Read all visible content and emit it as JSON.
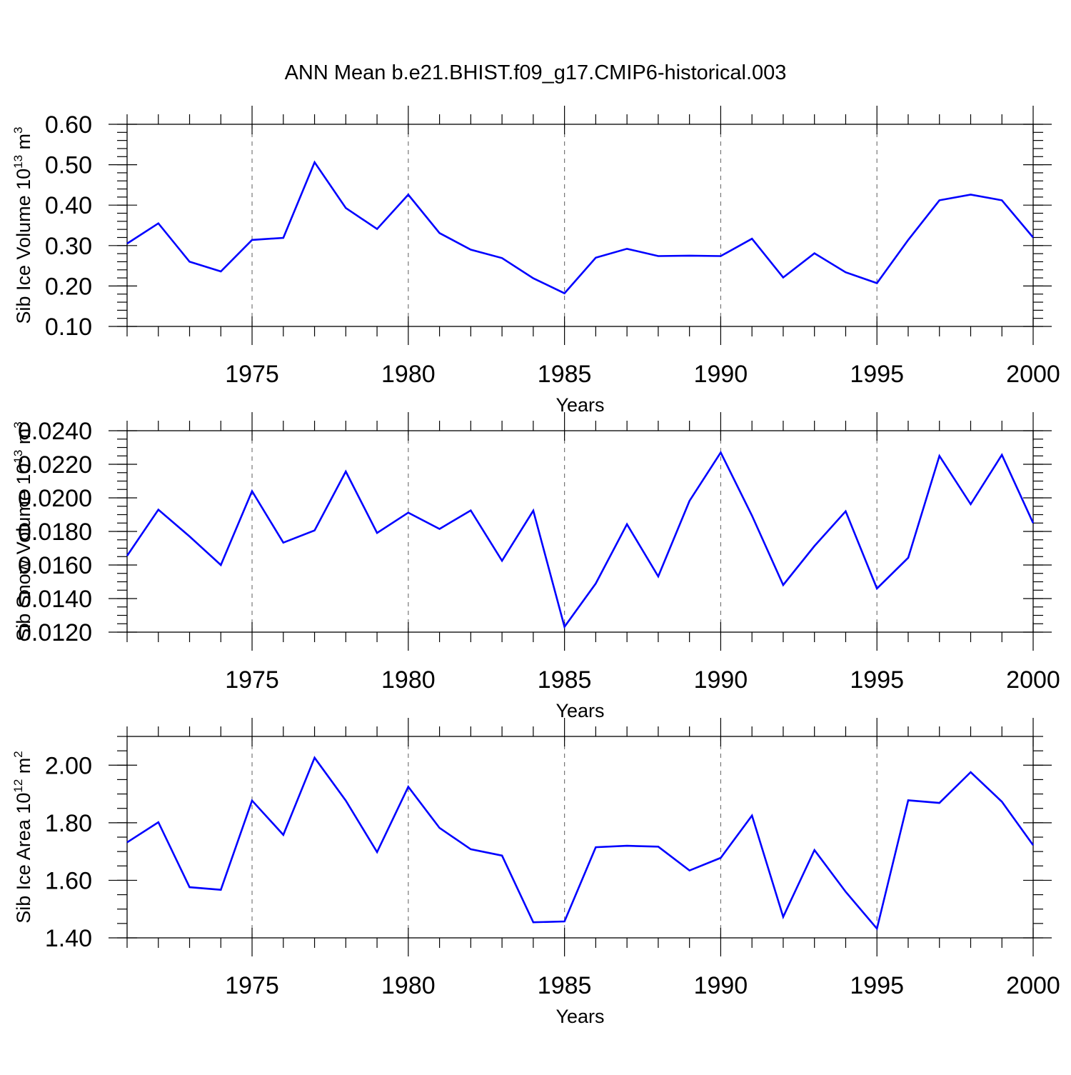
{
  "title": "ANN Mean b.e21.BHIST.f09_g17.CMIP6-historical.003",
  "colors": {
    "series": "#0000ff",
    "grid": "#777777",
    "frame": "#000000"
  },
  "chart_data": [
    {
      "type": "line",
      "xlabel": "Years",
      "ylabel_base": "Sib Ice Volume 10",
      "ylabel_exp": "13",
      "ylabel_unit": " m",
      "ylabel_unit_exp": "3",
      "xlim": [
        1971,
        2000
      ],
      "ylim": [
        0.1,
        0.6
      ],
      "yticks": [
        "0.10",
        "0.20",
        "0.30",
        "0.40",
        "0.50",
        "0.60"
      ],
      "yminor_step": 0.02,
      "xticks": [
        "1975",
        "1980",
        "1985",
        "1990",
        "1995",
        "2000"
      ],
      "xgrid": [
        1975,
        1980,
        1985,
        1990,
        1995
      ],
      "x": [
        1971,
        1972,
        1973,
        1974,
        1975,
        1976,
        1977,
        1978,
        1979,
        1980,
        1981,
        1982,
        1983,
        1984,
        1985,
        1986,
        1987,
        1988,
        1989,
        1990,
        1991,
        1992,
        1993,
        1994,
        1995,
        1996,
        1997,
        1998,
        1999,
        2000
      ],
      "values": [
        0.305,
        0.355,
        0.26,
        0.236,
        0.314,
        0.319,
        0.506,
        0.393,
        0.341,
        0.426,
        0.331,
        0.29,
        0.269,
        0.219,
        0.182,
        0.27,
        0.292,
        0.274,
        0.275,
        0.274,
        0.317,
        0.221,
        0.281,
        0.234,
        0.207,
        0.314,
        0.412,
        0.426,
        0.412,
        0.32
      ]
    },
    {
      "type": "line",
      "xlabel": "Years",
      "ylabel_base": "Sib Snow Volume 10",
      "ylabel_exp": "13",
      "ylabel_unit": " m",
      "ylabel_unit_exp": "3",
      "xlim": [
        1971,
        2000
      ],
      "ylim": [
        0.012,
        0.024
      ],
      "yticks": [
        "0.0120",
        "0.0140",
        "0.0160",
        "0.0180",
        "0.0200",
        "0.0220",
        "0.0240"
      ],
      "yminor_step": 0.0005,
      "xticks": [
        "1975",
        "1980",
        "1985",
        "1990",
        "1995",
        "2000"
      ],
      "xgrid": [
        1975,
        1980,
        1985,
        1990,
        1995
      ],
      "x": [
        1971,
        1972,
        1973,
        1974,
        1975,
        1976,
        1977,
        1978,
        1979,
        1980,
        1981,
        1982,
        1983,
        1984,
        1985,
        1986,
        1987,
        1988,
        1989,
        1990,
        1991,
        1992,
        1993,
        1994,
        1995,
        1996,
        1997,
        1998,
        1999,
        2000
      ],
      "values": [
        0.01655,
        0.0193,
        0.0177,
        0.016,
        0.0204,
        0.01733,
        0.01806,
        0.02157,
        0.01791,
        0.01912,
        0.01815,
        0.01925,
        0.01625,
        0.01924,
        0.01232,
        0.0149,
        0.01843,
        0.01532,
        0.01982,
        0.0227,
        0.01894,
        0.01481,
        0.01713,
        0.0192,
        0.0146,
        0.01643,
        0.0225,
        0.01962,
        0.02256,
        0.0185
      ]
    },
    {
      "type": "line",
      "xlabel": "Years",
      "ylabel_base": "Sib Ice Area 10",
      "ylabel_exp": "12",
      "ylabel_unit": " m",
      "ylabel_unit_exp": "2",
      "xlim": [
        1971,
        2000
      ],
      "ylim": [
        1.4,
        2.1
      ],
      "yticks": [
        "1.40",
        "1.60",
        "1.80",
        "2.00"
      ],
      "yminor_step": 0.05,
      "xticks": [
        "1975",
        "1980",
        "1985",
        "1990",
        "1995",
        "2000"
      ],
      "xgrid": [
        1975,
        1980,
        1985,
        1990,
        1995
      ],
      "x": [
        1971,
        1972,
        1973,
        1974,
        1975,
        1976,
        1977,
        1978,
        1979,
        1980,
        1981,
        1982,
        1983,
        1984,
        1985,
        1986,
        1987,
        1988,
        1989,
        1990,
        1991,
        1992,
        1993,
        1994,
        1995,
        1996,
        1997,
        1998,
        1999,
        2000
      ],
      "values": [
        1.732,
        1.802,
        1.576,
        1.567,
        1.877,
        1.758,
        2.026,
        1.877,
        1.698,
        1.925,
        1.782,
        1.708,
        1.686,
        1.454,
        1.457,
        1.715,
        1.72,
        1.717,
        1.634,
        1.678,
        1.825,
        1.473,
        1.705,
        1.56,
        1.432,
        1.878,
        1.869,
        1.976,
        1.873,
        1.722
      ]
    }
  ]
}
